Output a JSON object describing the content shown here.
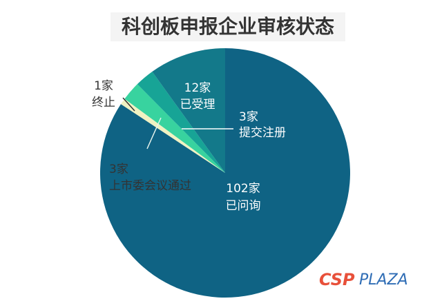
{
  "chart_data": {
    "type": "pie",
    "title": "科创板申报企业审核状态",
    "categories": [
      "已问询",
      "终止",
      "上市委会议通过",
      "提交注册",
      "已受理"
    ],
    "values": [
      102,
      1,
      3,
      3,
      12
    ],
    "value_labels": [
      "102家",
      "1家",
      "3家",
      "3家",
      "12家"
    ],
    "colors": [
      "#0f6384",
      "#f0f2c2",
      "#38d39f",
      "#17a496",
      "#13798a"
    ],
    "watermark": [
      "CSP",
      "PLAZA"
    ]
  }
}
